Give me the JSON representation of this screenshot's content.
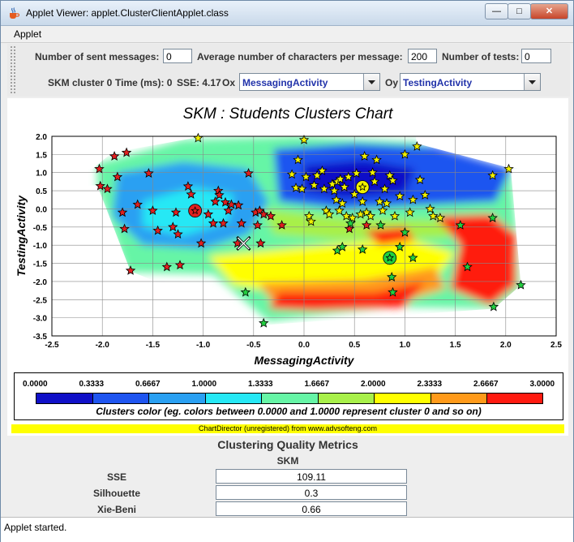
{
  "window": {
    "title": "Applet Viewer: applet.ClusterClientApplet.class",
    "min_glyph": "—",
    "max_glyph": "□",
    "close_glyph": "✕"
  },
  "menu": {
    "applet": "Applet"
  },
  "toolbar": {
    "sent_label": "Number of sent messages:",
    "sent_value": "0",
    "avg_label": "Average number of characters per message:",
    "avg_value": "200",
    "tests_label": "Number of tests:",
    "tests_value": "0",
    "cluster_label": "SKM cluster 0",
    "time_label": "Time (ms): 0",
    "sse_label": "SSE: 4.17",
    "ox_label": "Ox",
    "ox_value": "MessagingActivity",
    "oy_label": "Oy",
    "oy_value": "TestingActivity"
  },
  "chart": {
    "title": "SKM : Students Clusters Chart",
    "colorbar_ticks": [
      "0.0000",
      "0.3333",
      "0.6667",
      "1.0000",
      "1.3333",
      "1.6667",
      "2.0000",
      "2.3333",
      "2.6667",
      "3.0000"
    ],
    "colorbar_colors": [
      "#1010c8",
      "#1f55f0",
      "#2aa0f2",
      "#26e8f5",
      "#66f5a6",
      "#a8f04a",
      "#ffff00",
      "#ff9a1a",
      "#ff1a10"
    ],
    "colorbar_caption": "Clusters color (eg. colors between 0.0000 and 1.0000 represent cluster 0 and so on)",
    "watermark": "ChartDirector (unregistered) from www.advsofteng.com"
  },
  "chart_data": {
    "type": "scatter",
    "title": "SKM : Students Clusters Chart",
    "xlabel": "MessagingActivity",
    "ylabel": "TestingActivity",
    "xlim": [
      -2.5,
      2.5
    ],
    "ylim": [
      -3.5,
      2.0
    ],
    "x_ticks": [
      "-2.5",
      "-2.0",
      "-1.5",
      "-1.0",
      "-0.5",
      "0.0",
      "0.5",
      "1.0",
      "1.5",
      "2.0",
      "2.5"
    ],
    "y_ticks": [
      "2.0",
      "1.5",
      "1.0",
      "0.5",
      "0.0",
      "-0.5",
      "-1.0",
      "-1.5",
      "-2.0",
      "-2.5",
      "-3.0",
      "-3.5"
    ],
    "grid": true,
    "series": [
      {
        "color": "#e02020",
        "points": [
          [
            -2.03,
            1.1
          ],
          [
            -2.02,
            0.63
          ],
          [
            -1.95,
            0.55
          ],
          [
            -1.88,
            1.45
          ],
          [
            -1.85,
            0.88
          ],
          [
            -1.8,
            -0.1
          ],
          [
            -1.78,
            -0.55
          ],
          [
            -1.76,
            1.55
          ],
          [
            -1.72,
            -1.7
          ],
          [
            -1.65,
            0.12
          ],
          [
            -1.54,
            0.98
          ],
          [
            -1.5,
            -0.05
          ],
          [
            -1.45,
            -0.6
          ],
          [
            -1.36,
            -1.6
          ],
          [
            -1.3,
            -0.5
          ],
          [
            -1.27,
            -0.1
          ],
          [
            -1.25,
            -0.7
          ],
          [
            -1.23,
            -1.55
          ],
          [
            -1.15,
            0.62
          ],
          [
            -1.12,
            0.4
          ],
          [
            -1.08,
            -0.05
          ],
          [
            -1.02,
            -0.95
          ],
          [
            -0.95,
            -0.15
          ],
          [
            -0.9,
            -0.4
          ],
          [
            -0.88,
            0.2
          ],
          [
            -0.85,
            0.5
          ],
          [
            -0.84,
            0.38
          ],
          [
            -0.8,
            -0.4
          ],
          [
            -0.78,
            0.18
          ],
          [
            -0.75,
            -0.05
          ],
          [
            -0.72,
            0.12
          ],
          [
            -0.66,
            -0.95
          ],
          [
            -0.65,
            0.1
          ],
          [
            -0.62,
            -0.4
          ],
          [
            -0.55,
            0.98
          ],
          [
            -0.48,
            -0.1
          ],
          [
            -0.46,
            -0.45
          ],
          [
            -0.44,
            -0.05
          ],
          [
            -0.43,
            -0.95
          ],
          [
            -0.4,
            -0.15
          ],
          [
            -0.33,
            -0.2
          ],
          [
            -0.22,
            -0.45
          ],
          [
            0.45,
            -0.55
          ],
          [
            0.62,
            -0.45
          ]
        ]
      },
      {
        "color": "#f0f000",
        "points": [
          [
            -1.05,
            1.95
          ],
          [
            -0.12,
            0.95
          ],
          [
            -0.08,
            0.58
          ],
          [
            -0.06,
            1.35
          ],
          [
            -0.02,
            0.55
          ],
          [
            0.0,
            1.9
          ],
          [
            0.02,
            0.88
          ],
          [
            0.05,
            -0.2
          ],
          [
            0.07,
            -0.35
          ],
          [
            0.1,
            0.65
          ],
          [
            0.13,
            0.92
          ],
          [
            0.18,
            1.05
          ],
          [
            0.2,
            0.55
          ],
          [
            0.22,
            -0.05
          ],
          [
            0.25,
            -0.15
          ],
          [
            0.28,
            0.68
          ],
          [
            0.3,
            0.5
          ],
          [
            0.32,
            0.25
          ],
          [
            0.33,
            0.75
          ],
          [
            0.35,
            -0.05
          ],
          [
            0.36,
            0.82
          ],
          [
            0.38,
            0.15
          ],
          [
            0.4,
            0.6
          ],
          [
            0.42,
            -0.2
          ],
          [
            0.44,
            0.88
          ],
          [
            0.48,
            -0.25
          ],
          [
            0.5,
            0.4
          ],
          [
            0.52,
            0.98
          ],
          [
            0.56,
            -0.15
          ],
          [
            0.58,
            0.2
          ],
          [
            0.6,
            1.45
          ],
          [
            0.62,
            -0.1
          ],
          [
            0.66,
            -0.2
          ],
          [
            0.68,
            1.0
          ],
          [
            0.7,
            0.75
          ],
          [
            0.72,
            1.35
          ],
          [
            0.75,
            0.2
          ],
          [
            0.78,
            -0.05
          ],
          [
            0.8,
            0.55
          ],
          [
            0.82,
            0.15
          ],
          [
            0.85,
            0.92
          ],
          [
            0.88,
            0.78
          ],
          [
            0.9,
            -0.2
          ],
          [
            0.95,
            0.35
          ],
          [
            1.0,
            1.5
          ],
          [
            1.05,
            -0.1
          ],
          [
            1.08,
            0.25
          ],
          [
            1.12,
            1.72
          ],
          [
            1.15,
            0.8
          ],
          [
            1.2,
            0.38
          ],
          [
            1.25,
            0.0
          ],
          [
            1.28,
            -0.2
          ],
          [
            1.35,
            -0.25
          ],
          [
            1.87,
            0.92
          ],
          [
            2.03,
            1.1
          ]
        ]
      },
      {
        "color": "#22d040",
        "points": [
          [
            -0.58,
            -2.3
          ],
          [
            -0.4,
            -3.15
          ],
          [
            0.33,
            -1.15
          ],
          [
            0.38,
            -1.05
          ],
          [
            0.46,
            -0.4
          ],
          [
            0.58,
            -1.12
          ],
          [
            0.76,
            -0.45
          ],
          [
            0.86,
            -1.4
          ],
          [
            0.87,
            -1.88
          ],
          [
            0.88,
            -2.3
          ],
          [
            0.95,
            -1.05
          ],
          [
            1.0,
            -0.65
          ],
          [
            1.08,
            -1.35
          ],
          [
            1.55,
            -0.45
          ],
          [
            1.62,
            -1.6
          ],
          [
            1.87,
            -0.25
          ],
          [
            1.88,
            -2.7
          ],
          [
            2.15,
            -2.1
          ]
        ]
      }
    ],
    "centroids": [
      {
        "x": -1.08,
        "y": -0.05,
        "color": "#e02020"
      },
      {
        "x": 0.58,
        "y": 0.6,
        "color": "#f0f000"
      },
      {
        "x": 0.85,
        "y": -1.35,
        "color": "#22d040"
      }
    ],
    "marker": {
      "x": -0.6,
      "y": -0.95
    }
  },
  "metrics": {
    "title": "Clustering Quality Metrics",
    "column": "SKM",
    "rows": [
      {
        "label": "SSE",
        "value": "109.11"
      },
      {
        "label": "Silhouette",
        "value": "0.3"
      },
      {
        "label": "Xie-Beni",
        "value": "0.66"
      }
    ]
  },
  "status": "Applet started."
}
